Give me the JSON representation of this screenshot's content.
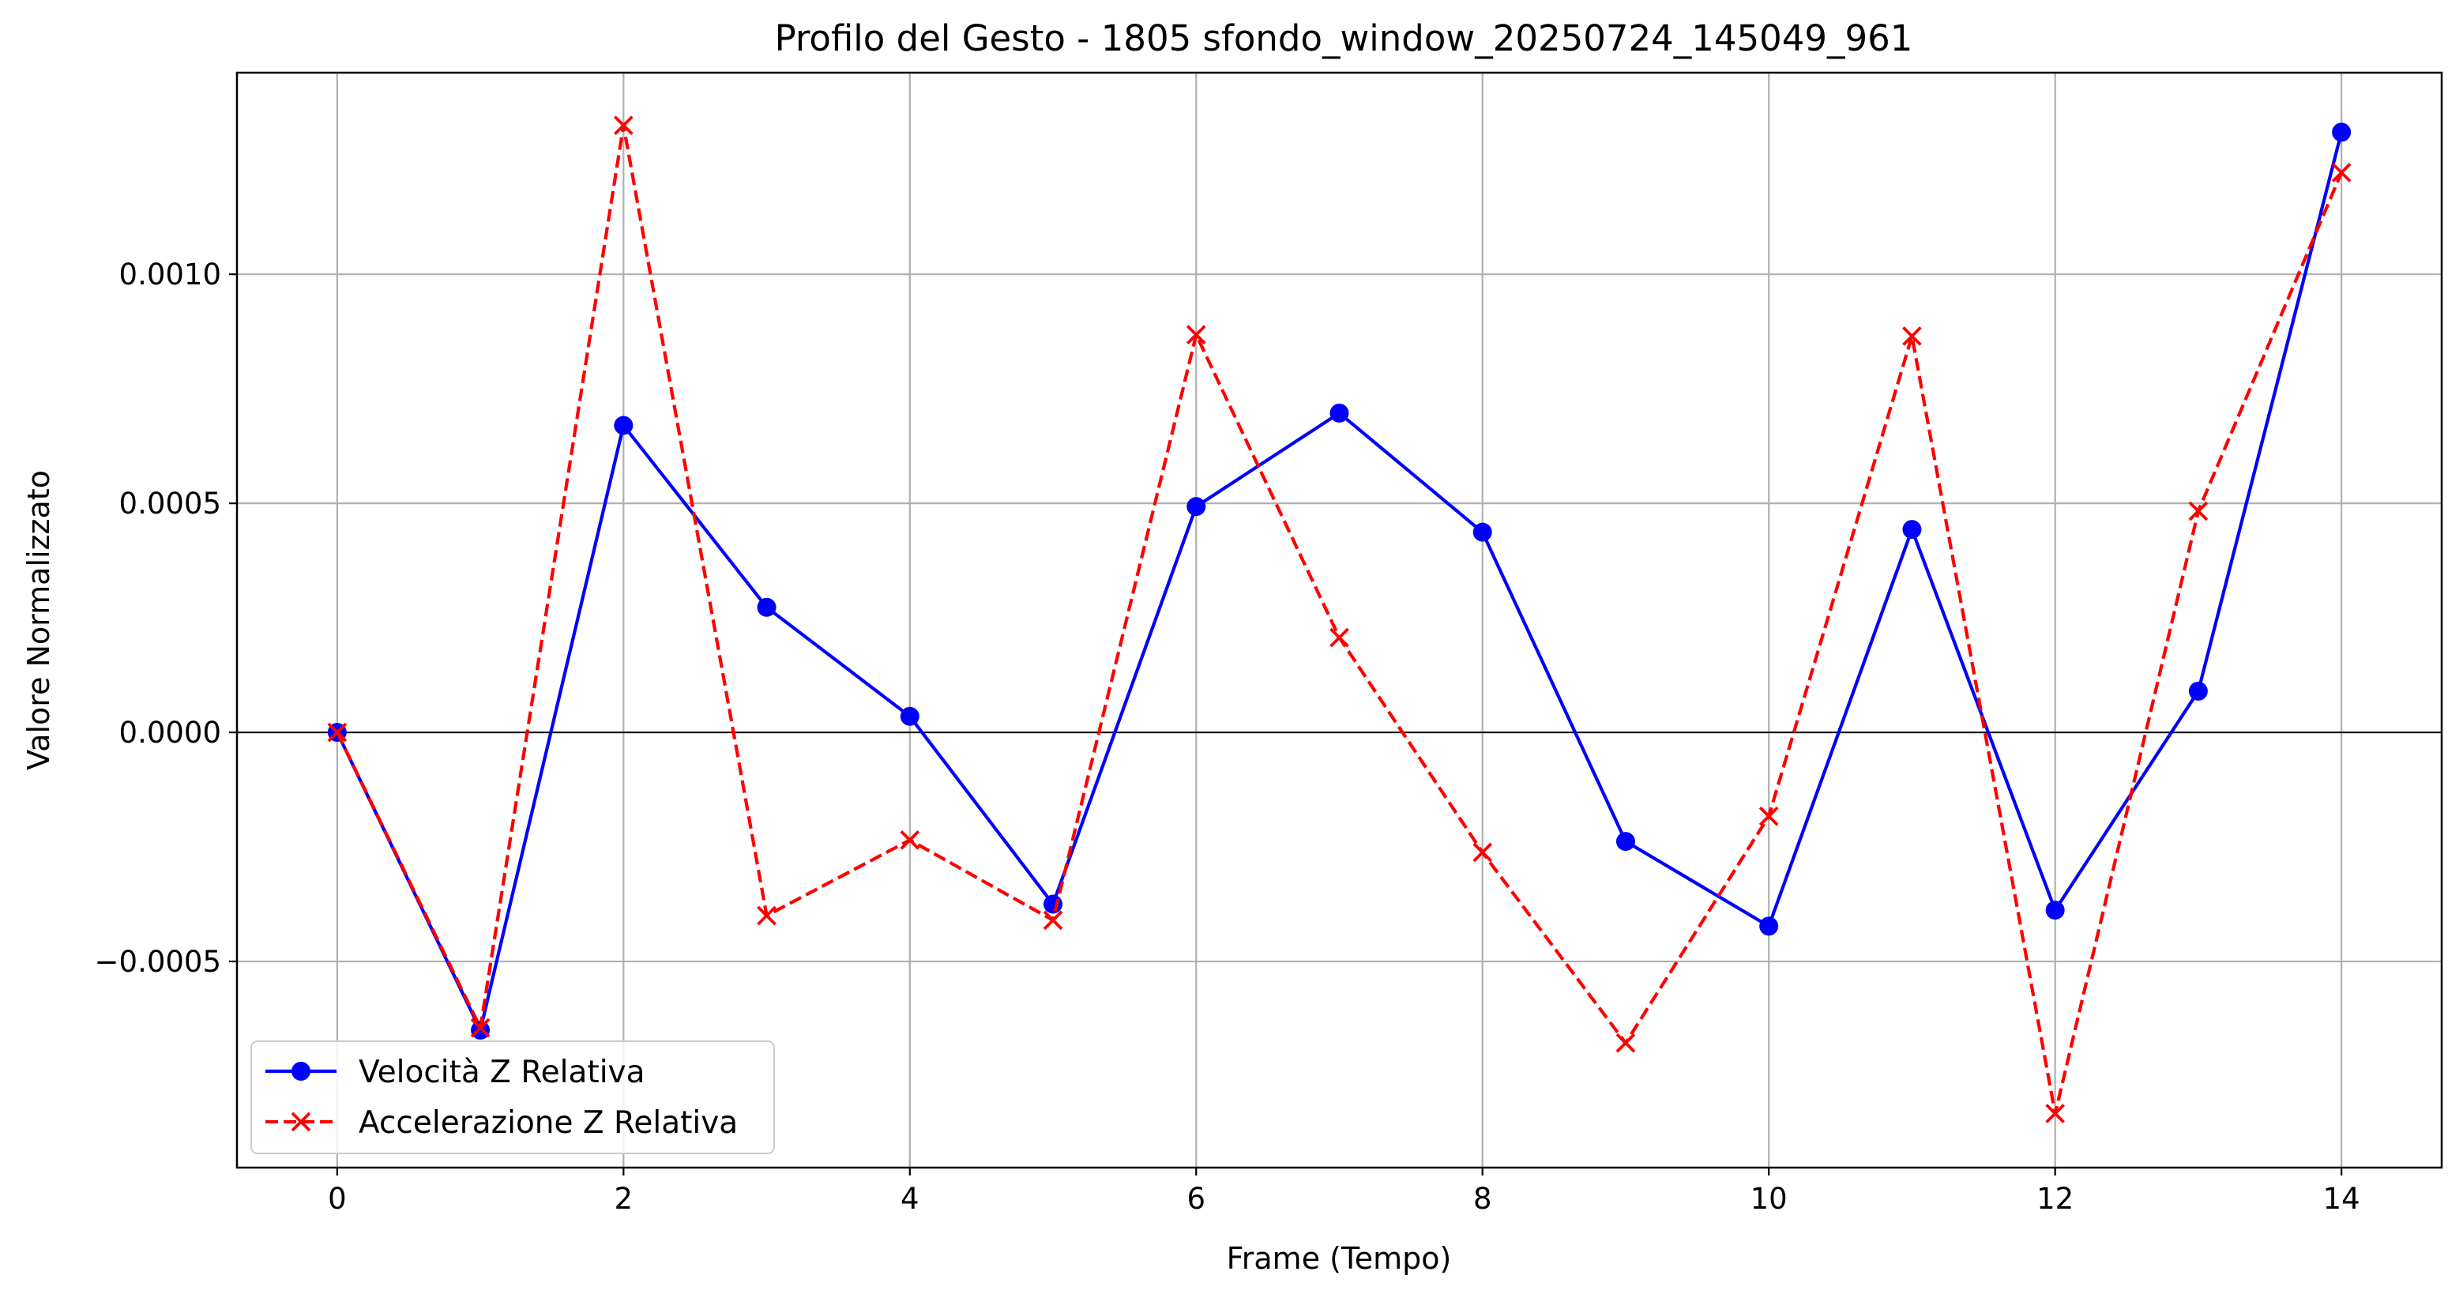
{
  "chart_data": {
    "type": "line",
    "title": "Profilo del Gesto - 1805 sfondo_window_20250724_145049_961",
    "xlabel": "Frame (Tempo)",
    "ylabel": "Valore Normalizzato",
    "xlim": [
      -0.7,
      14.7
    ],
    "ylim": [
      -0.00095,
      0.00144
    ],
    "x_ticks": [
      0,
      2,
      4,
      6,
      8,
      10,
      12,
      14
    ],
    "x_tick_labels": [
      "0",
      "2",
      "4",
      "6",
      "8",
      "10",
      "12",
      "14"
    ],
    "y_ticks": [
      -0.0005,
      0.0,
      0.0005,
      0.001
    ],
    "y_tick_labels": [
      "−0.0005",
      "0.0000",
      "0.0005",
      "0.0010"
    ],
    "grid": true,
    "zero_line": true,
    "legend_position": "lower-left",
    "x": [
      0,
      1,
      2,
      3,
      4,
      5,
      6,
      7,
      8,
      9,
      10,
      11,
      12,
      13,
      14
    ],
    "series": [
      {
        "name": "Velocità Z Relativa",
        "color": "#0000ff",
        "line_style": "solid",
        "marker": "circle",
        "values": [
          0.0,
          -0.00065,
          0.00067,
          0.000273,
          3.5e-05,
          -0.000375,
          0.000493,
          0.000697,
          0.000437,
          -0.000238,
          -0.000423,
          0.000443,
          -0.000388,
          9e-05,
          0.00131
        ]
      },
      {
        "name": "Accelerazione Z Relativa",
        "color": "#ff0000",
        "line_style": "dashed",
        "marker": "x",
        "values": [
          0.0,
          -0.000645,
          0.001325,
          -0.0004,
          -0.000235,
          -0.00041,
          0.000868,
          0.000207,
          -0.000262,
          -0.000678,
          -0.000183,
          0.000865,
          -0.000832,
          0.000483,
          0.001222
        ]
      }
    ]
  }
}
